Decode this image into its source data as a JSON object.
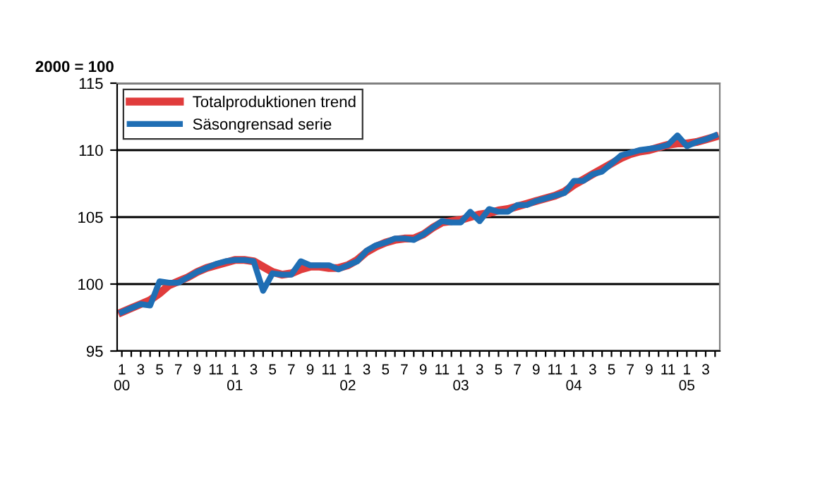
{
  "chart_data": {
    "type": "line",
    "ylabel": "2000 = 100",
    "categories": [
      "1\n00",
      null,
      "3",
      null,
      "5",
      null,
      "7",
      null,
      "9",
      null,
      "11",
      null,
      "1\n01",
      null,
      "3",
      null,
      "5",
      null,
      "7",
      null,
      "9",
      null,
      "11",
      null,
      "1\n02",
      null,
      "3",
      null,
      "5",
      null,
      "7",
      null,
      "9",
      null,
      "11",
      null,
      "1\n03",
      null,
      "3",
      null,
      "5",
      null,
      "7",
      null,
      "9",
      null,
      "11",
      null,
      "1\n04",
      null,
      "3",
      null,
      "5",
      null,
      "7",
      null,
      "9",
      null,
      "11",
      null,
      "1\n05",
      null,
      "3",
      null
    ],
    "series": [
      {
        "name": "Totalproduktionen trend",
        "color": "#e03c3c",
        "values": [
          97.9,
          98.2,
          98.5,
          98.8,
          99.3,
          99.9,
          100.2,
          100.5,
          100.9,
          101.2,
          101.4,
          101.6,
          101.8,
          101.8,
          101.7,
          101.3,
          100.9,
          100.7,
          100.8,
          101.1,
          101.3,
          101.3,
          101.2,
          101.2,
          101.4,
          101.8,
          102.4,
          102.8,
          103.1,
          103.3,
          103.4,
          103.4,
          103.7,
          104.2,
          104.6,
          104.7,
          104.8,
          105.0,
          105.2,
          105.3,
          105.5,
          105.6,
          105.8,
          106.0,
          106.2,
          106.4,
          106.6,
          106.9,
          107.4,
          107.8,
          108.2,
          108.6,
          109.0,
          109.4,
          109.7,
          109.9,
          110.0,
          110.2,
          110.4,
          110.5,
          110.5,
          110.6,
          110.8,
          111.0
        ]
      },
      {
        "name": "Säsongrensad serie",
        "color": "#1f6eb4",
        "values": [
          97.9,
          98.2,
          98.5,
          98.4,
          100.2,
          100.1,
          100.1,
          100.5,
          100.9,
          101.2,
          101.5,
          101.7,
          101.8,
          101.8,
          101.7,
          99.5,
          100.8,
          100.7,
          100.7,
          101.7,
          101.4,
          101.4,
          101.4,
          101.1,
          101.4,
          101.7,
          102.5,
          102.9,
          103.1,
          103.4,
          103.4,
          103.3,
          103.7,
          104.2,
          104.7,
          104.6,
          104.6,
          105.4,
          104.7,
          105.6,
          105.4,
          105.4,
          105.9,
          105.9,
          106.2,
          106.4,
          106.6,
          106.8,
          107.7,
          107.7,
          108.2,
          108.4,
          109.0,
          109.6,
          109.8,
          110.0,
          110.1,
          110.2,
          110.4,
          111.1,
          110.3,
          110.6,
          110.8,
          111.1
        ]
      }
    ],
    "ylim": [
      95,
      115
    ],
    "yticks": [
      95,
      100,
      105,
      110,
      115
    ],
    "grid": "y",
    "legend": "top left",
    "marker": "none",
    "line_style": "solid"
  }
}
